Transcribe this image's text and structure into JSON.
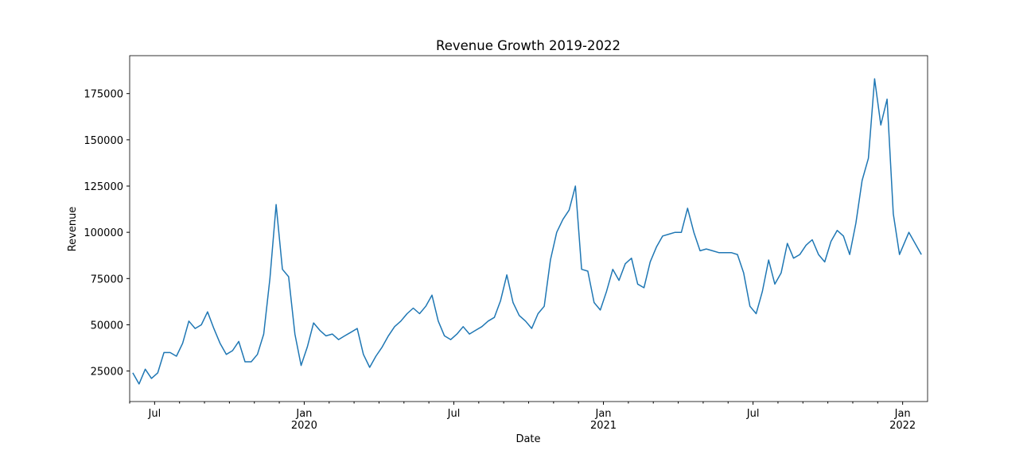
{
  "chart_data": {
    "type": "line",
    "title": "Revenue Growth 2019-2022",
    "x_label": "Date",
    "y_label": "Revenue",
    "x": [
      "2019-06",
      "2019-06",
      "2019-06",
      "2019-06",
      "2019-07",
      "2019-07",
      "2019-07",
      "2019-07",
      "2019-08",
      "2019-08",
      "2019-08",
      "2019-08",
      "2019-09",
      "2019-09",
      "2019-09",
      "2019-09",
      "2019-10",
      "2019-10",
      "2019-10",
      "2019-10",
      "2019-11",
      "2019-11",
      "2019-11",
      "2019-11",
      "2019-12",
      "2019-12",
      "2019-12",
      "2019-12",
      "2020-01",
      "2020-01",
      "2020-01",
      "2020-01",
      "2020-02",
      "2020-02",
      "2020-02",
      "2020-02",
      "2020-03",
      "2020-03",
      "2020-03",
      "2020-03",
      "2020-04",
      "2020-04",
      "2020-04",
      "2020-04",
      "2020-05",
      "2020-05",
      "2020-05",
      "2020-05",
      "2020-06",
      "2020-06",
      "2020-06",
      "2020-06",
      "2020-07",
      "2020-07",
      "2020-07",
      "2020-07",
      "2020-08",
      "2020-08",
      "2020-08",
      "2020-08",
      "2020-09",
      "2020-09",
      "2020-09",
      "2020-09",
      "2020-10",
      "2020-10",
      "2020-10",
      "2020-10",
      "2020-11",
      "2020-11",
      "2020-11",
      "2020-11",
      "2020-12",
      "2020-12",
      "2020-12",
      "2020-12",
      "2021-01",
      "2021-01",
      "2021-01",
      "2021-01",
      "2021-02",
      "2021-02",
      "2021-02",
      "2021-02",
      "2021-03",
      "2021-03",
      "2021-03",
      "2021-03",
      "2021-04",
      "2021-04",
      "2021-04",
      "2021-04",
      "2021-05",
      "2021-05",
      "2021-05",
      "2021-05",
      "2021-06",
      "2021-06",
      "2021-06",
      "2021-06",
      "2021-07",
      "2021-07",
      "2021-07",
      "2021-07",
      "2021-08",
      "2021-08",
      "2021-08",
      "2021-08",
      "2021-09",
      "2021-09",
      "2021-09",
      "2021-09",
      "2021-10",
      "2021-10",
      "2021-10",
      "2021-10",
      "2021-11",
      "2021-11",
      "2021-11",
      "2021-11",
      "2021-12",
      "2021-12",
      "2021-12",
      "2021-12",
      "2022-01",
      "2022-01"
    ],
    "values": [
      24000,
      18000,
      26000,
      21000,
      24000,
      35000,
      35000,
      33000,
      40000,
      52000,
      48000,
      50000,
      57000,
      48000,
      40000,
      34000,
      36000,
      41000,
      30000,
      30000,
      34000,
      45000,
      75000,
      115000,
      80000,
      76000,
      45000,
      28000,
      38000,
      51000,
      47000,
      44000,
      45000,
      42000,
      44000,
      46000,
      48000,
      34000,
      27000,
      33000,
      38000,
      44000,
      49000,
      52000,
      56000,
      59000,
      56000,
      60000,
      66000,
      52000,
      44000,
      42000,
      45000,
      49000,
      45000,
      47000,
      49000,
      52000,
      54000,
      63000,
      77000,
      62000,
      55000,
      52000,
      48000,
      56000,
      60000,
      85000,
      100000,
      107000,
      112000,
      125000,
      80000,
      79000,
      62000,
      58000,
      68000,
      80000,
      74000,
      83000,
      86000,
      72000,
      70000,
      84000,
      92000,
      98000,
      99000,
      100000,
      100000,
      113000,
      100000,
      90000,
      91000,
      90000,
      89000,
      89000,
      89000,
      88000,
      78000,
      60000,
      56000,
      68000,
      85000,
      72000,
      78000,
      94000,
      86000,
      88000,
      93000,
      96000,
      88000,
      84000,
      95000,
      101000,
      98000,
      88000,
      105000,
      128000,
      140000,
      183000,
      158000,
      172000,
      110000,
      88000,
      100000,
      88000
    ],
    "color": "#1f77b4",
    "xlim": [
      "2019-06",
      "2022-01"
    ],
    "xticks": [
      {
        "value": "2019-07",
        "label": "Jul"
      },
      {
        "value": "2020-01",
        "label": "Jan\n2020"
      },
      {
        "value": "2020-07",
        "label": "Jul"
      },
      {
        "value": "2021-01",
        "label": "Jan\n2021"
      },
      {
        "value": "2021-07",
        "label": "Jul"
      },
      {
        "value": "2022-01",
        "label": "Jan\n2022"
      }
    ],
    "xminorticks": [
      "2019-06",
      "2019-08",
      "2019-09",
      "2019-10",
      "2019-11",
      "2019-12",
      "2020-02",
      "2020-03",
      "2020-04",
      "2020-05",
      "2020-06",
      "2020-08",
      "2020-09",
      "2020-10",
      "2020-11",
      "2020-12",
      "2021-02",
      "2021-03",
      "2021-04",
      "2021-05",
      "2021-06",
      "2021-08",
      "2021-09",
      "2021-10",
      "2021-11",
      "2021-12"
    ],
    "ylim": [
      8500,
      195500
    ],
    "yticks": [
      25000,
      50000,
      75000,
      100000,
      125000,
      150000,
      175000
    ]
  }
}
